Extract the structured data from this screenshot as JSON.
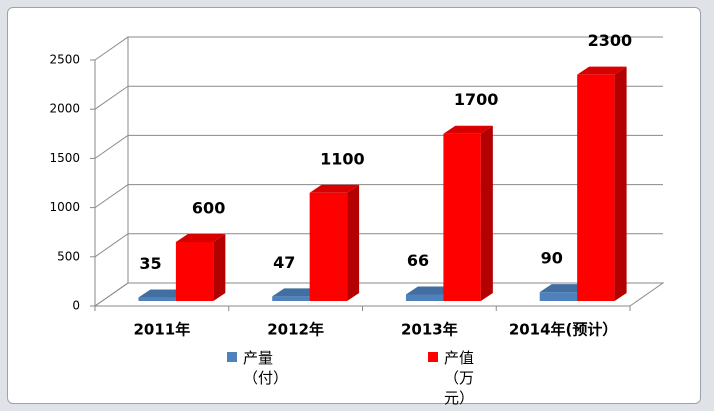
{
  "chart_data": {
    "type": "bar3d",
    "categories": [
      "2011年",
      "2012年",
      "2013年",
      "2014年(预计）"
    ],
    "series": [
      {
        "name": "产量（付）",
        "color": "#4f81bd",
        "values": [
          35,
          47,
          66,
          90
        ]
      },
      {
        "name": "产值（万元）",
        "color": "#ff0000",
        "values": [
          600,
          1100,
          1700,
          2300
        ]
      }
    ],
    "ylim": [
      0,
      2500
    ],
    "yticks": [
      0,
      500,
      1000,
      1500,
      2000,
      2500
    ],
    "grid": true,
    "legend": "bottom"
  }
}
